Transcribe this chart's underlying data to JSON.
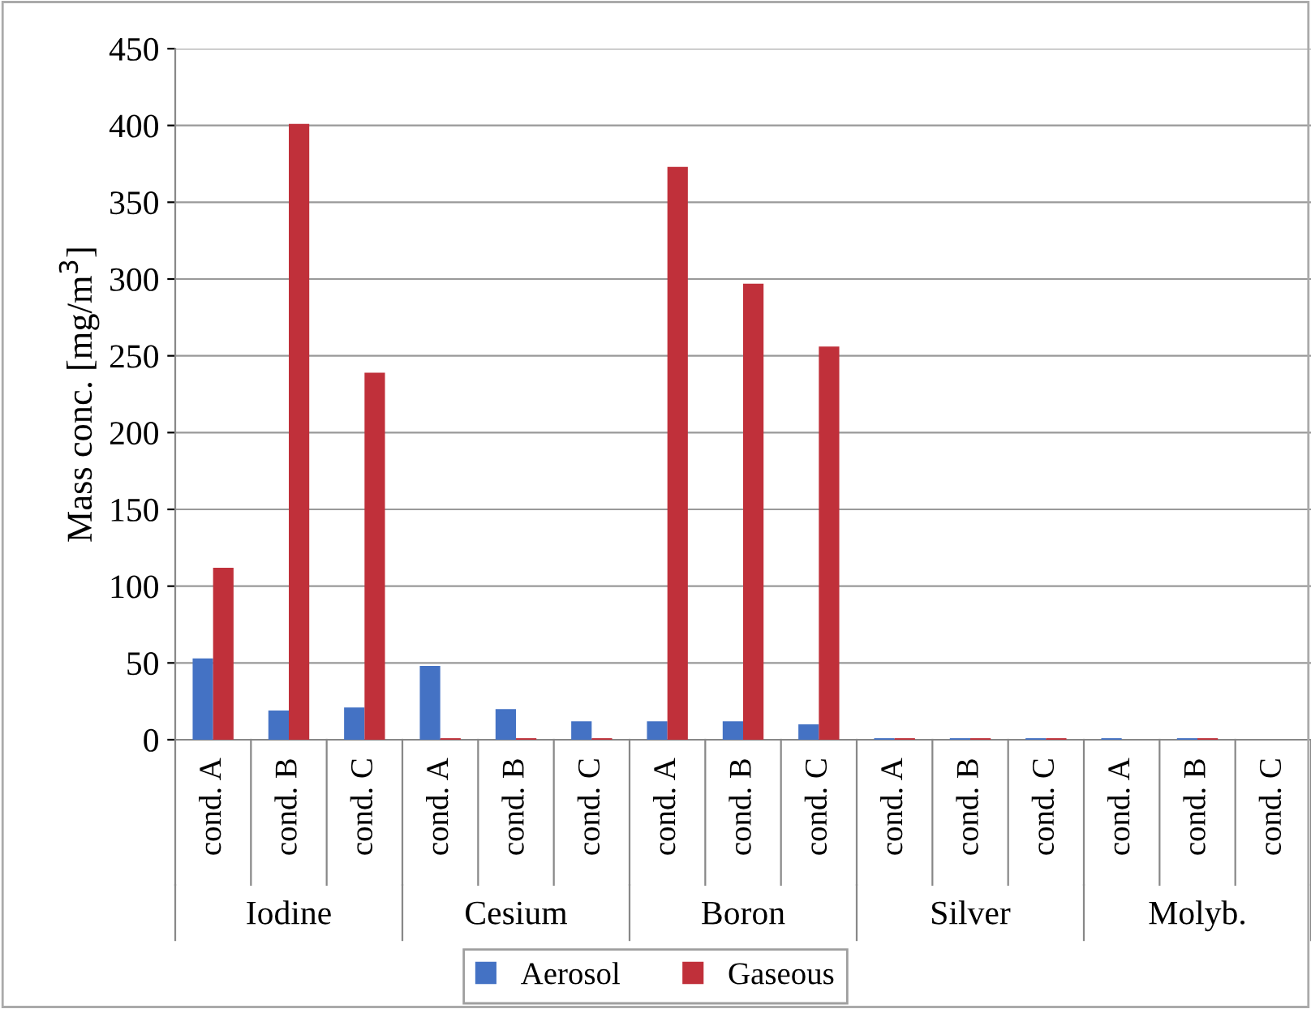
{
  "chart_data": {
    "type": "bar",
    "ylabel": "Mass conc. [mg/m$^{3}$]",
    "categories": [
      "cond. A",
      "cond. B",
      "cond. C",
      "cond. A",
      "cond. B",
      "cond. C",
      "cond. A",
      "cond. B",
      "cond. C",
      "cond. A",
      "cond. B",
      "cond. C",
      "cond. A",
      "cond. B",
      "cond. C"
    ],
    "series": [
      {
        "name": "Aerosol",
        "color": "#4472c4",
        "values": [
          53,
          19,
          21,
          48,
          20,
          12,
          12,
          12,
          10,
          1,
          1,
          1,
          1,
          1,
          0
        ]
      },
      {
        "name": "Gaseous",
        "color": "#c0303a",
        "values": [
          112,
          401,
          239,
          1,
          1,
          1,
          373,
          297,
          256,
          1,
          1,
          1,
          0,
          1,
          0
        ]
      }
    ],
    "annotations": [
      "Iodine",
      "Cesium",
      "Boron",
      "Silver",
      "Molyb."
    ],
    "ylim": [
      0,
      450
    ],
    "yticks": [
      0,
      50,
      100,
      150,
      200,
      250,
      300,
      350,
      400,
      450
    ],
    "grid": "y",
    "legend": "bottom"
  }
}
